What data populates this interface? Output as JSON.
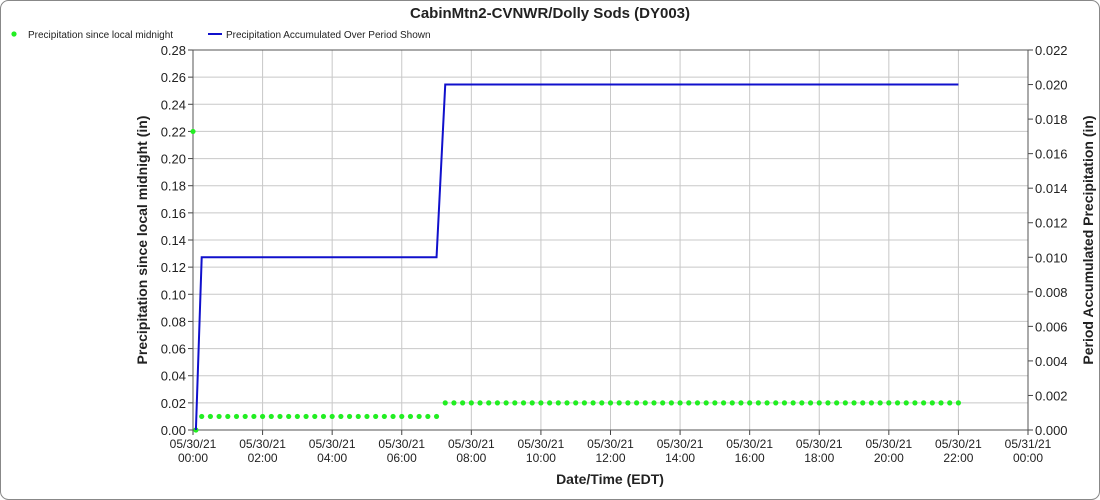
{
  "chart_data": {
    "type": "combo",
    "title": "CabinMtn2-CVNWR/Dolly Sods (DY003)",
    "x_label": "Date/Time (EDT)",
    "y_label": "Precipitation since local midnight (in)",
    "y2_label": "Period Accumulated Precipitation (in)",
    "grid": true,
    "xlim": [
      "05/30/21 00:00",
      "05/31/21 00:00"
    ],
    "xticks": [
      "05/30/21 00:00",
      "05/30/21 02:00",
      "05/30/21 04:00",
      "05/30/21 06:00",
      "05/30/21 08:00",
      "05/30/21 10:00",
      "05/30/21 12:00",
      "05/30/21 14:00",
      "05/30/21 16:00",
      "05/30/21 18:00",
      "05/30/21 20:00",
      "05/30/21 22:00",
      "05/31/21 00:00"
    ],
    "ylim": [
      0,
      0.28
    ],
    "yticks": [
      {
        "value": 0,
        "label": "0.00"
      },
      0.02,
      0.04,
      0.06,
      0.08,
      {
        "value": 0.1,
        "label": "0.10"
      },
      0.12,
      0.14,
      0.16,
      0.18,
      {
        "value": 0.2,
        "label": "0.20"
      },
      0.22,
      0.24,
      0.26,
      0.28
    ],
    "y2lim": [
      0,
      0.022
    ],
    "y2ticks": [
      {
        "value": 0,
        "label": "0.000"
      },
      0.002,
      0.004,
      0.006,
      0.008,
      {
        "value": 0.01,
        "label": "0.010"
      },
      0.012,
      0.014,
      0.016,
      0.018,
      {
        "value": 0.02,
        "label": "0.020"
      },
      0.022
    ],
    "series": [
      {
        "name": "Precipitation since local midnight",
        "color": "#22ee22",
        "type": "scatter",
        "x": [
          "05/30/21 00:00",
          "05/30/21 00:05",
          "05/30/21 00:15",
          "05/30/21 00:30",
          "05/30/21 00:45",
          "05/30/21 01:00",
          "05/30/21 01:15",
          "05/30/21 01:30",
          "05/30/21 01:45",
          "05/30/21 02:00",
          "05/30/21 02:15",
          "05/30/21 02:30",
          "05/30/21 02:45",
          "05/30/21 03:00",
          "05/30/21 03:15",
          "05/30/21 03:30",
          "05/30/21 03:45",
          "05/30/21 04:00",
          "05/30/21 04:15",
          "05/30/21 04:30",
          "05/30/21 04:45",
          "05/30/21 05:00",
          "05/30/21 05:15",
          "05/30/21 05:30",
          "05/30/21 05:45",
          "05/30/21 06:00",
          "05/30/21 06:15",
          "05/30/21 06:30",
          "05/30/21 06:45",
          "05/30/21 07:00",
          "05/30/21 07:15",
          "05/30/21 07:30",
          "05/30/21 07:45",
          "05/30/21 08:00",
          "05/30/21 08:15",
          "05/30/21 08:30",
          "05/30/21 08:45",
          "05/30/21 09:00",
          "05/30/21 09:15",
          "05/30/21 09:30",
          "05/30/21 09:45",
          "05/30/21 10:00",
          "05/30/21 10:15",
          "05/30/21 10:30",
          "05/30/21 10:45",
          "05/30/21 11:00",
          "05/30/21 11:15",
          "05/30/21 11:30",
          "05/30/21 11:45",
          "05/30/21 12:00",
          "05/30/21 12:15",
          "05/30/21 12:30",
          "05/30/21 12:45",
          "05/30/21 13:00",
          "05/30/21 13:15",
          "05/30/21 13:30",
          "05/30/21 13:45",
          "05/30/21 14:00",
          "05/30/21 14:15",
          "05/30/21 14:30",
          "05/30/21 14:45",
          "05/30/21 15:00",
          "05/30/21 15:15",
          "05/30/21 15:30",
          "05/30/21 15:45",
          "05/30/21 16:00",
          "05/30/21 16:15",
          "05/30/21 16:30",
          "05/30/21 16:45",
          "05/30/21 17:00",
          "05/30/21 17:15",
          "05/30/21 17:30",
          "05/30/21 17:45",
          "05/30/21 18:00",
          "05/30/21 18:15",
          "05/30/21 18:30",
          "05/30/21 18:45",
          "05/30/21 19:00",
          "05/30/21 19:15",
          "05/30/21 19:30",
          "05/30/21 19:45",
          "05/30/21 20:00",
          "05/30/21 20:15",
          "05/30/21 20:30",
          "05/30/21 20:45",
          "05/30/21 21:00",
          "05/30/21 21:15",
          "05/30/21 21:30",
          "05/30/21 21:45",
          "05/30/21 22:00"
        ],
        "values": [
          0.22,
          0,
          0.01,
          0.01,
          0.01,
          0.01,
          0.01,
          0.01,
          0.01,
          0.01,
          0.01,
          0.01,
          0.01,
          0.01,
          0.01,
          0.01,
          0.01,
          0.01,
          0.01,
          0.01,
          0.01,
          0.01,
          0.01,
          0.01,
          0.01,
          0.01,
          0.01,
          0.01,
          0.01,
          0.01,
          0.02,
          0.02,
          0.02,
          0.02,
          0.02,
          0.02,
          0.02,
          0.02,
          0.02,
          0.02,
          0.02,
          0.02,
          0.02,
          0.02,
          0.02,
          0.02,
          0.02,
          0.02,
          0.02,
          0.02,
          0.02,
          0.02,
          0.02,
          0.02,
          0.02,
          0.02,
          0.02,
          0.02,
          0.02,
          0.02,
          0.02,
          0.02,
          0.02,
          0.02,
          0.02,
          0.02,
          0.02,
          0.02,
          0.02,
          0.02,
          0.02,
          0.02,
          0.02,
          0.02,
          0.02,
          0.02,
          0.02,
          0.02,
          0.02,
          0.02,
          0.02,
          0.02,
          0.02,
          0.02,
          0.02,
          0.02,
          0.02,
          0.02,
          0.02,
          0.02
        ]
      },
      {
        "name": "Precipitation Accumulated Over Period Shown",
        "color": "#1010cc",
        "type": "line",
        "axis": "y2",
        "x": [
          "05/30/21 00:05",
          "05/30/21 00:15",
          "05/30/21 07:00",
          "05/30/21 07:15",
          "05/30/21 22:00"
        ],
        "values": [
          0,
          0.01,
          0.01,
          0.02,
          0.02
        ]
      }
    ]
  }
}
